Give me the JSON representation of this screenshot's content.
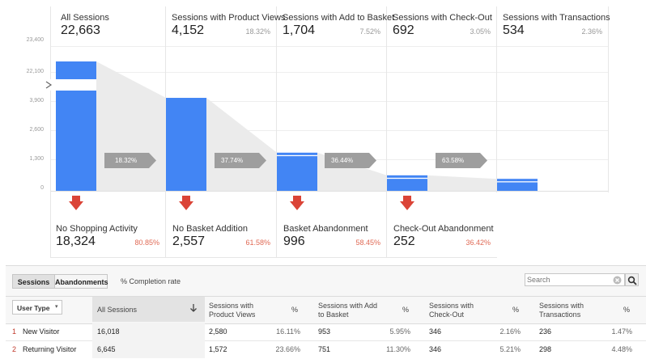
{
  "chart_data": {
    "type": "bar",
    "title": "",
    "categories": [
      "All Sessions",
      "Sessions with Product Views",
      "Sessions with Add to Basket",
      "Sessions with Check-Out",
      "Sessions with Transactions"
    ],
    "values": [
      22663,
      4152,
      1704,
      692,
      534
    ],
    "continuation_rates": [
      "18.32%",
      "37.74%",
      "36.44%",
      "63.58%"
    ],
    "y_ticks": [
      "23,400",
      "22,100",
      "3,900",
      "2,600",
      "1,300",
      "0"
    ],
    "y_axis_break": true
  },
  "stages": [
    {
      "label": "All Sessions",
      "value": "22,663",
      "pct": ""
    },
    {
      "label": "Sessions with Product Views",
      "value": "4,152",
      "pct": "18.32%"
    },
    {
      "label": "Sessions with Add to Basket",
      "value": "1,704",
      "pct": "7.52%"
    },
    {
      "label": "Sessions with Check-Out",
      "value": "692",
      "pct": "3.05%"
    },
    {
      "label": "Sessions with Transactions",
      "value": "534",
      "pct": "2.36%"
    }
  ],
  "flow_rates": [
    "18.32%",
    "37.74%",
    "36.44%",
    "63.58%"
  ],
  "abandonments": [
    {
      "label": "No Shopping Activity",
      "value": "18,324",
      "pct": "80.85%"
    },
    {
      "label": "No Basket Addition",
      "value": "2,557",
      "pct": "61.58%"
    },
    {
      "label": "Basket Abandonment",
      "value": "996",
      "pct": "58.45%"
    },
    {
      "label": "Check-Out Abandonment",
      "value": "252",
      "pct": "36.42%"
    }
  ],
  "table": {
    "tab_sessions": "Sessions",
    "tab_abandonments": "Abandonments",
    "completion_rate_label": "% Completion rate",
    "search_placeholder": "Search",
    "dimension_label": "User Type",
    "headers": {
      "all_sessions": "All Sessions",
      "product_views": "Sessions with Product Views",
      "add_to_basket": "Sessions with Add to Basket",
      "check_out": "Sessions with Check-Out",
      "transactions": "Sessions with Transactions",
      "pct": "%"
    },
    "rows": [
      {
        "index": "1",
        "name": "New Visitor",
        "all": "16,018",
        "pv": "2,580",
        "pv_pct": "16.11%",
        "atb": "953",
        "atb_pct": "5.95%",
        "co": "346",
        "co_pct": "2.16%",
        "tx": "236",
        "tx_pct": "1.47%"
      },
      {
        "index": "2",
        "name": "Returning Visitor",
        "all": "6,645",
        "pv": "1,572",
        "pv_pct": "23.66%",
        "atb": "751",
        "atb_pct": "11.30%",
        "co": "346",
        "co_pct": "5.21%",
        "tx": "298",
        "tx_pct": "4.48%"
      }
    ]
  },
  "colors": {
    "bar": "#4285f4",
    "arrow_down": "#db4437",
    "pill": "#9e9e9e",
    "abandon_pct": "#e06a55"
  }
}
